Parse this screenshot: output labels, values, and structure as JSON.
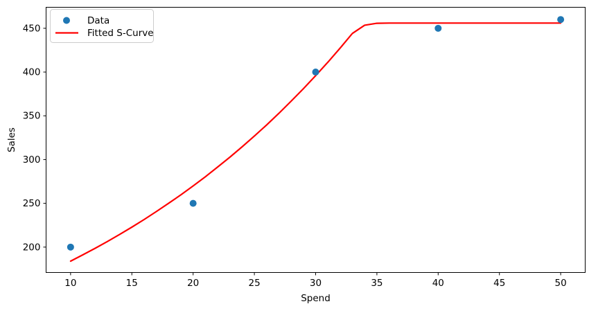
{
  "chart_data": {
    "type": "scatter",
    "title": "",
    "xlabel": "Spend",
    "ylabel": "Sales",
    "xlim": [
      8,
      52
    ],
    "ylim": [
      171,
      474
    ],
    "x_ticks": [
      10,
      15,
      20,
      25,
      30,
      35,
      40,
      45,
      50
    ],
    "y_ticks": [
      200,
      250,
      300,
      350,
      400,
      450
    ],
    "grid": false,
    "legend_position": "upper left",
    "series": [
      {
        "name": "Data",
        "type": "scatter",
        "color": "#1f77b4",
        "marker": "circle",
        "x": [
          10,
          20,
          30,
          40,
          50
        ],
        "y": [
          200,
          250,
          400,
          450,
          460
        ]
      },
      {
        "name": "Fitted S-Curve",
        "type": "line",
        "color": "#ff0000",
        "x": [
          10,
          11,
          12,
          13,
          14,
          15,
          16,
          17,
          18,
          19,
          20,
          21,
          22,
          23,
          24,
          25,
          26,
          27,
          28,
          29,
          30,
          31,
          32,
          33,
          34,
          35,
          36,
          37,
          38,
          39,
          40,
          41,
          42,
          43,
          44,
          45,
          46,
          47,
          48,
          49,
          50
        ],
        "y": [
          184.0,
          191.2,
          198.6,
          206.4,
          214.4,
          222.8,
          231.5,
          240.6,
          250.0,
          259.7,
          269.9,
          280.4,
          291.4,
          302.7,
          314.6,
          326.9,
          339.6,
          352.9,
          366.7,
          381.0,
          395.9,
          411.3,
          427.4,
          444.1,
          453.5,
          455.7,
          456,
          456,
          456,
          456,
          456,
          456,
          456,
          456,
          456,
          456,
          456,
          456,
          456,
          456,
          456
        ]
      }
    ],
    "legend": {
      "items": [
        {
          "label": "Data",
          "handle": "marker",
          "color": "#1f77b4"
        },
        {
          "label": "Fitted S-Curve",
          "handle": "line",
          "color": "#ff0000"
        }
      ]
    }
  }
}
